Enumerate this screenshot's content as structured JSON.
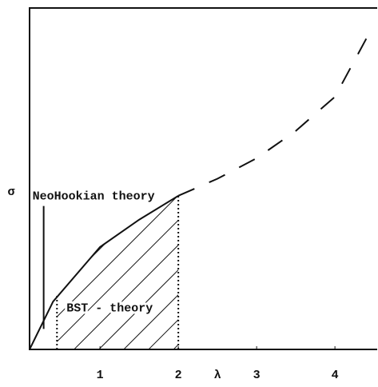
{
  "chart_data": {
    "type": "line",
    "x_label": "λ",
    "y_label": "σ",
    "xlim": [
      0.1,
      4.55
    ],
    "ylim": [
      0,
      10
    ],
    "xticks": [
      1,
      2,
      3,
      4
    ],
    "series": [
      {
        "name": "BST - theory",
        "style": "solid",
        "color": "#111111",
        "x": [
          0.1,
          0.4,
          1,
          1.5,
          2
        ],
        "values": [
          0,
          1.4,
          3.0,
          3.8,
          4.5
        ]
      },
      {
        "style": "dashed",
        "color": "#111111",
        "x": [
          2,
          2.5,
          3,
          3.5,
          4,
          4.4
        ],
        "values": [
          4.5,
          5.0,
          5.6,
          6.4,
          7.4,
          9.1
        ]
      }
    ],
    "reference_lines": [
      {
        "x": 0.28,
        "y": [
          0.6,
          4.2
        ],
        "style": "solid"
      },
      {
        "x": 0.45,
        "y": [
          0,
          1.6
        ],
        "style": "dotted"
      },
      {
        "x": 2,
        "y": [
          0,
          4.5
        ],
        "style": "dotted"
      }
    ],
    "hatch_range": [
      0.45,
      2
    ],
    "annotations": [
      "NeoHookian theory",
      "BST - theory"
    ]
  }
}
